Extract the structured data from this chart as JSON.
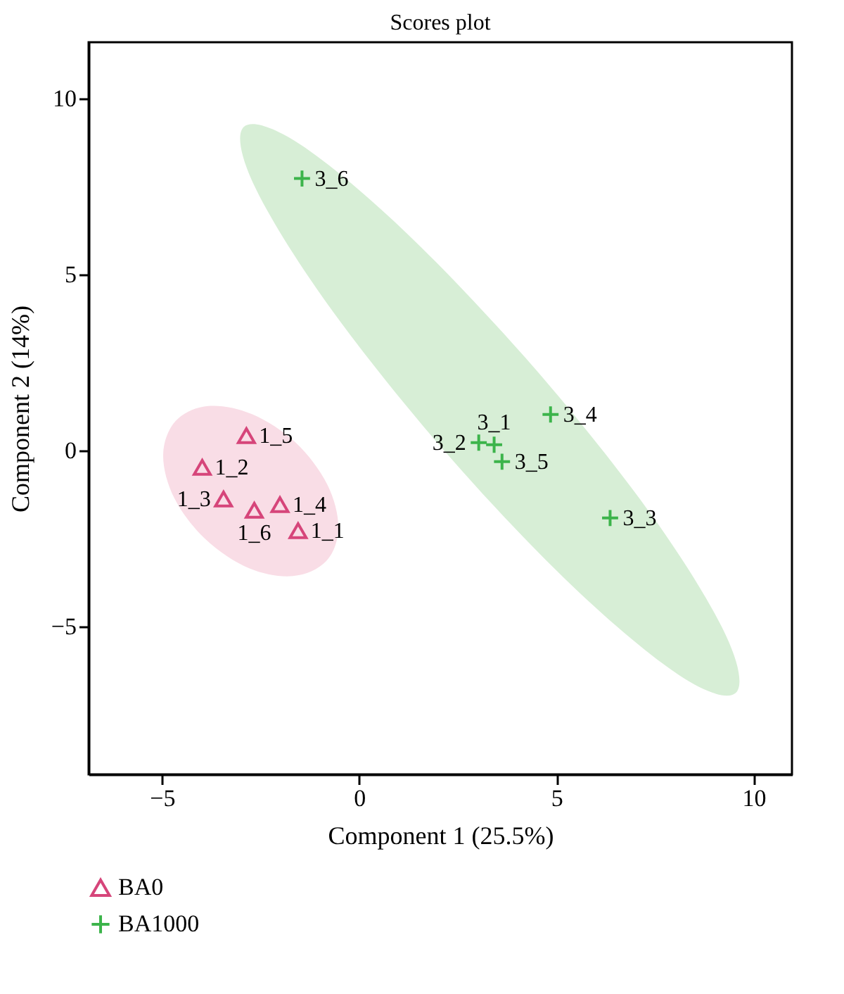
{
  "chart_data": {
    "type": "scatter",
    "title": "Scores plot",
    "xlabel": "Component 1 (25.5%)",
    "ylabel": "Component 2 (14%)",
    "xlim": [
      -6.86,
      10.97
    ],
    "ylim": [
      -9.19,
      11.6
    ],
    "xticks": [
      -5,
      0,
      5,
      10
    ],
    "yticks": [
      -5,
      0,
      5,
      10
    ],
    "legend": "bottom left",
    "series": [
      {
        "type": "area",
        "color": "#f9dde6",
        "x": [
          -0.84,
          -0.53,
          -0.81,
          -1.61,
          -2.72,
          -3.83,
          -4.65,
          -4.97,
          -4.69,
          -3.89,
          -2.79,
          -1.68
        ],
        "values": [
          -3.14,
          -2.19,
          -0.96,
          0.23,
          1.04,
          1.27,
          0.85,
          -0.11,
          -1.34,
          -2.52,
          -3.34,
          -3.56
        ]
      },
      {
        "type": "area",
        "color": "#d7eed6",
        "x": [
          9.54,
          9.29,
          7.44,
          4.48,
          1.21,
          -1.5,
          -2.92,
          -2.67,
          -0.82,
          2.14,
          5.41,
          8.12
        ],
        "values": [
          -6.88,
          -5.23,
          -1.87,
          2.3,
          6.17,
          8.7,
          9.2,
          7.55,
          4.19,
          0.02,
          -3.85,
          -6.38
        ]
      },
      {
        "name": "BA0",
        "marker": "triangle",
        "color": "#d6457a",
        "x": [
          -1.55,
          -3.98,
          -3.44,
          -2.01,
          -2.86,
          -2.66
        ],
        "values": [
          -2.27,
          -0.47,
          -1.37,
          -1.53,
          0.43,
          -1.69
        ],
        "value_labels": [
          "1_1",
          "1_2",
          "1_3",
          "1_4",
          "1_5",
          "1_6"
        ]
      },
      {
        "name": "BA1000",
        "marker": "cross",
        "color": "#3cb44b",
        "x": [
          3.42,
          3.03,
          6.36,
          4.85,
          3.62,
          -1.45
        ],
        "values": [
          0.17,
          0.23,
          -1.91,
          1.03,
          -0.31,
          7.73
        ],
        "value_labels": [
          "3_1",
          "3_2",
          "3_3",
          "3_4",
          "3_5",
          "3_6"
        ]
      }
    ]
  }
}
